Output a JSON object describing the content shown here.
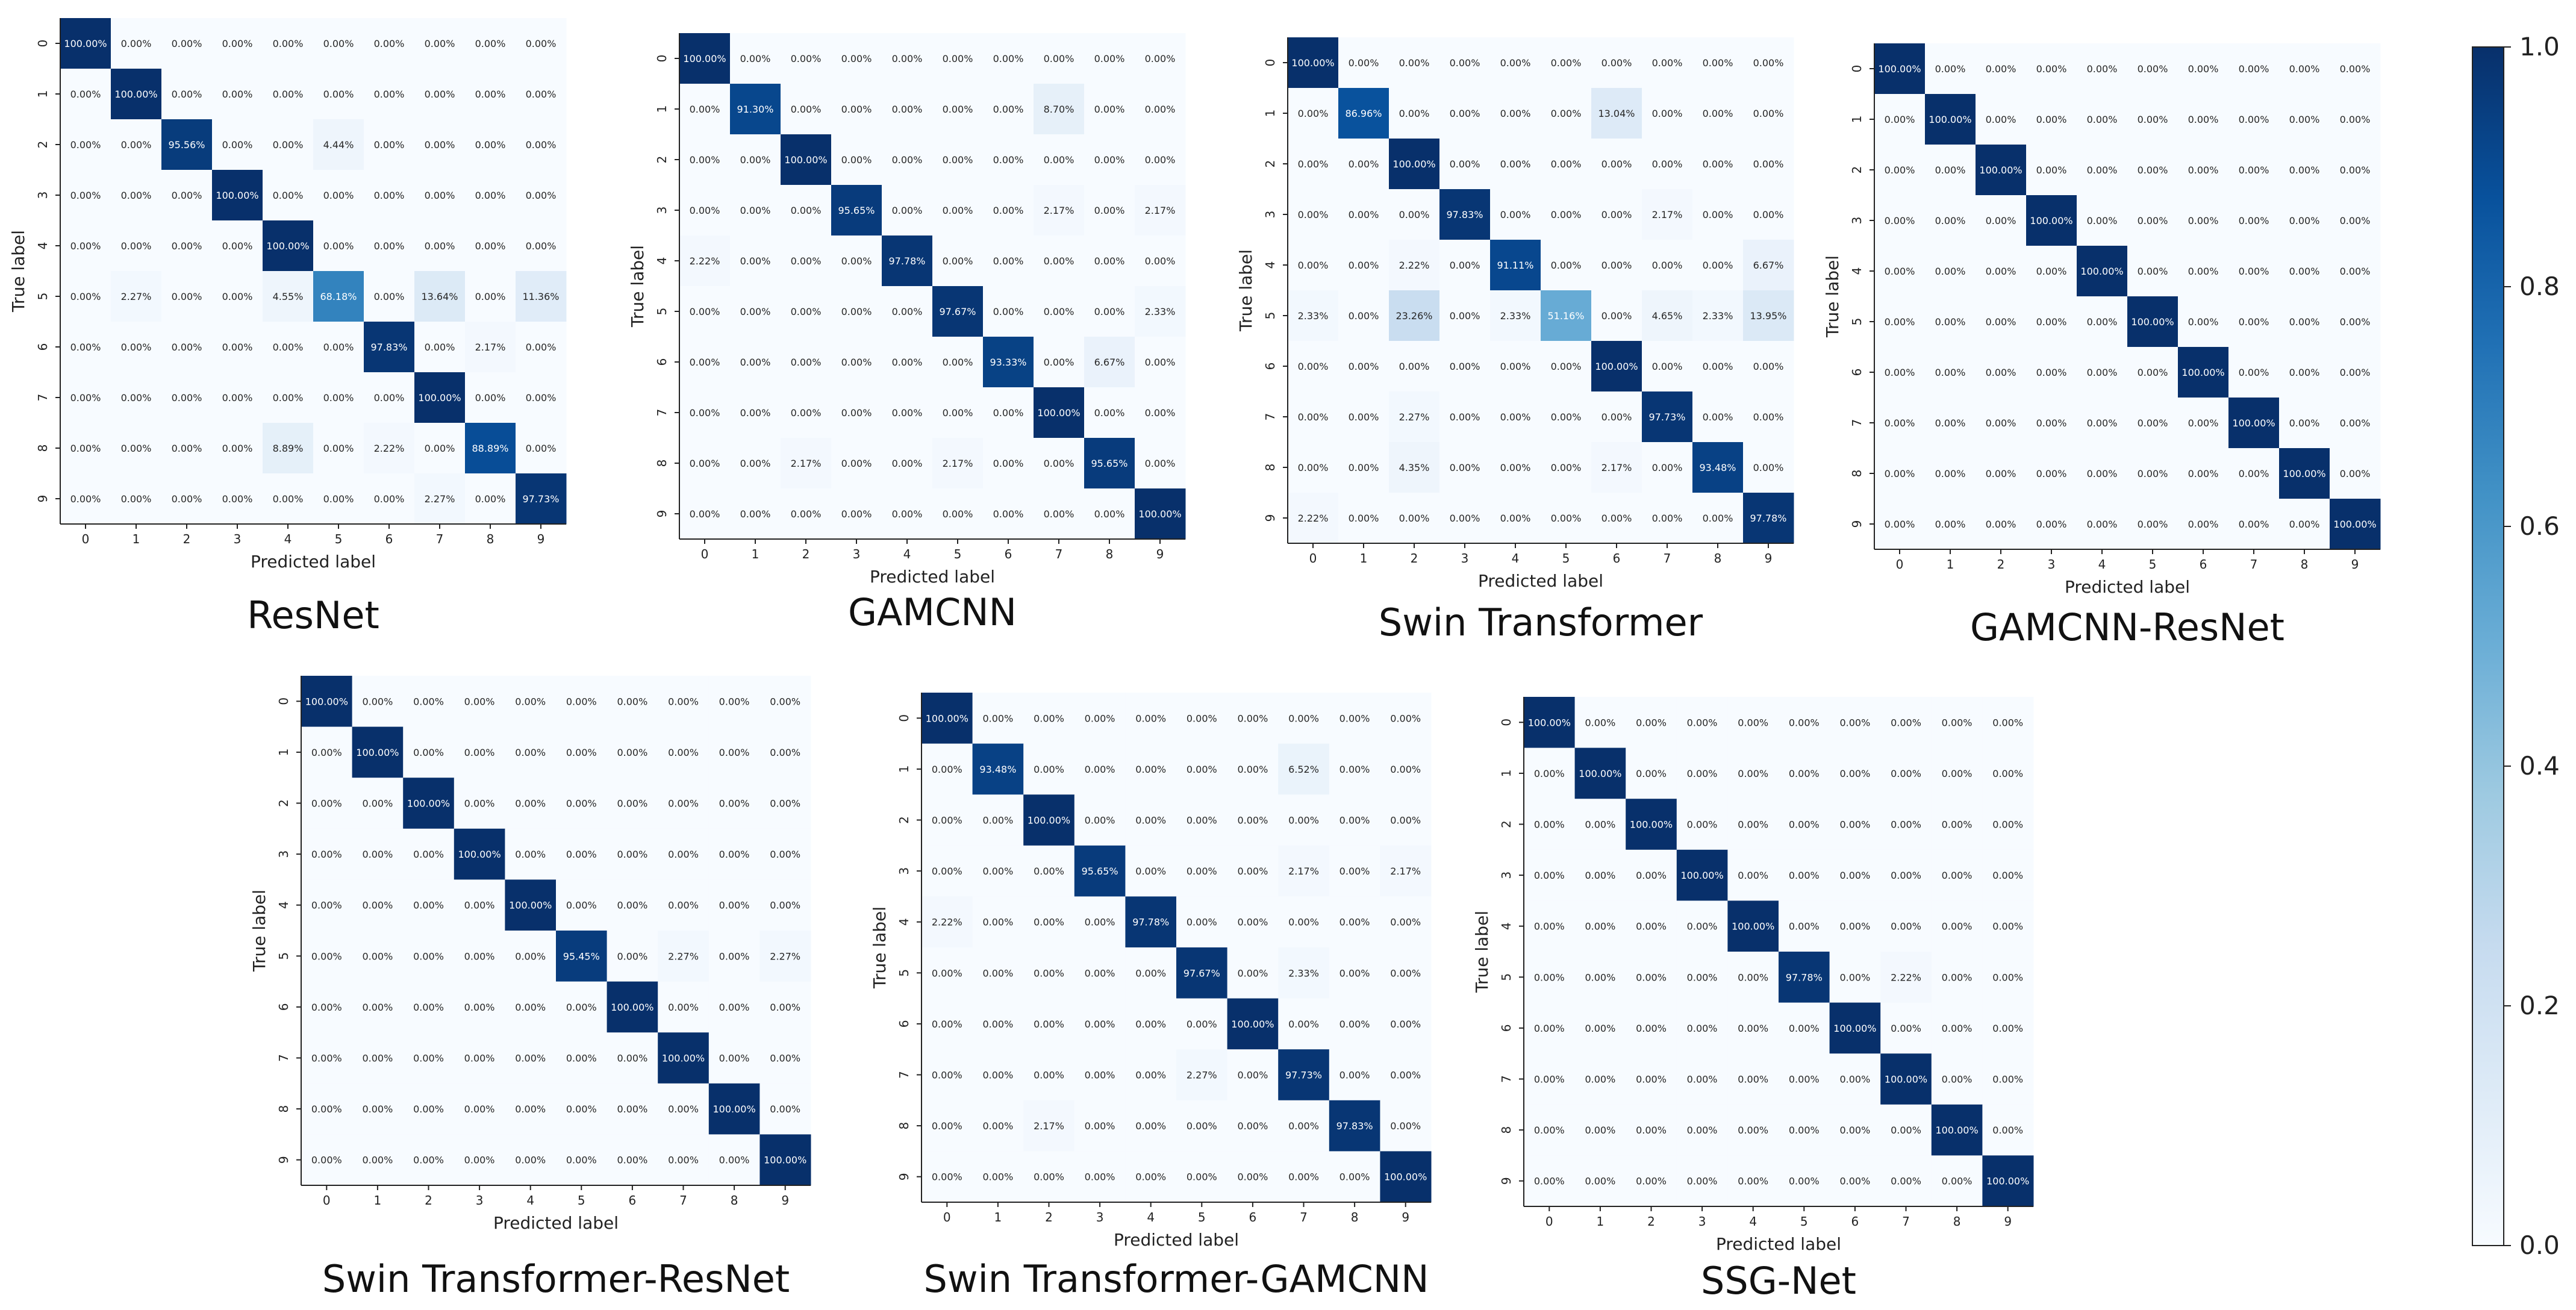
{
  "figure": {
    "colorbar": {
      "colormap": "Blues",
      "ticks": [
        "0.0",
        "0.2",
        "0.4",
        "0.6",
        "0.8",
        "1.0"
      ]
    },
    "colors": {
      "cmap_low": "#f7fbff",
      "cmap_high": "#08306b",
      "axis": "#222222"
    }
  },
  "chart_data": [
    {
      "type": "heatmap",
      "title": "ResNet",
      "xlabel": "Predicted label",
      "ylabel": "True label",
      "categories": [
        "0",
        "1",
        "2",
        "3",
        "4",
        "5",
        "6",
        "7",
        "8",
        "9"
      ],
      "values": [
        [
          100.0,
          0,
          0,
          0,
          0,
          0,
          0,
          0,
          0,
          0
        ],
        [
          0,
          100.0,
          0,
          0,
          0,
          0,
          0,
          0,
          0,
          0
        ],
        [
          0,
          0,
          95.56,
          0,
          0,
          4.44,
          0,
          0,
          0,
          0
        ],
        [
          0,
          0,
          0,
          100.0,
          0,
          0,
          0,
          0,
          0,
          0
        ],
        [
          0,
          0,
          0,
          0,
          100.0,
          0,
          0,
          0,
          0,
          0
        ],
        [
          0,
          2.27,
          0,
          0,
          4.55,
          68.18,
          0,
          13.64,
          0,
          11.36
        ],
        [
          0,
          0,
          0,
          0,
          0,
          0,
          97.83,
          0,
          2.17,
          0
        ],
        [
          0,
          0,
          0,
          0,
          0,
          0,
          0,
          100.0,
          0,
          0
        ],
        [
          0,
          0,
          0,
          0,
          8.89,
          0,
          2.22,
          0,
          88.89,
          0
        ],
        [
          0,
          0,
          0,
          0,
          0,
          0,
          0,
          2.27,
          0,
          97.73
        ]
      ]
    },
    {
      "type": "heatmap",
      "title": "GAMCNN",
      "xlabel": "Predicted label",
      "ylabel": "True label",
      "categories": [
        "0",
        "1",
        "2",
        "3",
        "4",
        "5",
        "6",
        "7",
        "8",
        "9"
      ],
      "values": [
        [
          100.0,
          0,
          0,
          0,
          0,
          0,
          0,
          0,
          0,
          0
        ],
        [
          0,
          91.3,
          0,
          0,
          0,
          0,
          0,
          8.7,
          0,
          0
        ],
        [
          0,
          0,
          100.0,
          0,
          0,
          0,
          0,
          0,
          0,
          0
        ],
        [
          0,
          0,
          0,
          95.65,
          0,
          0,
          0,
          2.17,
          0,
          2.17
        ],
        [
          2.22,
          0,
          0,
          0,
          97.78,
          0,
          0,
          0,
          0,
          0
        ],
        [
          0,
          0,
          0,
          0,
          0,
          97.67,
          0,
          0,
          0,
          2.33
        ],
        [
          0,
          0,
          0,
          0,
          0,
          0,
          93.33,
          0,
          6.67,
          0
        ],
        [
          0,
          0,
          0,
          0,
          0,
          0,
          0,
          100.0,
          0,
          0
        ],
        [
          0,
          0,
          2.17,
          0,
          0,
          2.17,
          0,
          0,
          95.65,
          0
        ],
        [
          0,
          0,
          0,
          0,
          0,
          0,
          0,
          0,
          0,
          100.0
        ]
      ]
    },
    {
      "type": "heatmap",
      "title": "Swin Transformer",
      "xlabel": "Predicted label",
      "ylabel": "True label",
      "categories": [
        "0",
        "1",
        "2",
        "3",
        "4",
        "5",
        "6",
        "7",
        "8",
        "9"
      ],
      "values": [
        [
          100.0,
          0,
          0,
          0,
          0,
          0,
          0,
          0,
          0,
          0
        ],
        [
          0,
          86.96,
          0,
          0,
          0,
          0,
          13.04,
          0,
          0,
          0
        ],
        [
          0,
          0,
          100.0,
          0,
          0,
          0,
          0,
          0,
          0,
          0
        ],
        [
          0,
          0,
          0,
          97.83,
          0,
          0,
          0,
          2.17,
          0,
          0
        ],
        [
          0,
          0,
          2.22,
          0,
          91.11,
          0,
          0,
          0,
          0,
          6.67
        ],
        [
          2.33,
          0,
          23.26,
          0,
          2.33,
          51.16,
          0,
          4.65,
          2.33,
          13.95
        ],
        [
          0,
          0,
          0,
          0,
          0,
          0,
          100.0,
          0,
          0,
          0
        ],
        [
          0,
          0,
          2.27,
          0,
          0,
          0,
          0,
          97.73,
          0,
          0
        ],
        [
          0,
          0,
          4.35,
          0,
          0,
          0,
          2.17,
          0,
          93.48,
          0
        ],
        [
          2.22,
          0,
          0,
          0,
          0,
          0,
          0,
          0,
          0,
          97.78
        ]
      ]
    },
    {
      "type": "heatmap",
      "title": "GAMCNN-ResNet",
      "xlabel": "Predicted label",
      "ylabel": "True label",
      "categories": [
        "0",
        "1",
        "2",
        "3",
        "4",
        "5",
        "6",
        "7",
        "8",
        "9"
      ],
      "values": [
        [
          100.0,
          0,
          0,
          0,
          0,
          0,
          0,
          0,
          0,
          0
        ],
        [
          0,
          100.0,
          0,
          0,
          0,
          0,
          0,
          0,
          0,
          0
        ],
        [
          0,
          0,
          100.0,
          0,
          0,
          0,
          0,
          0,
          0,
          0
        ],
        [
          0,
          0,
          0,
          100.0,
          0,
          0,
          0,
          0,
          0,
          0
        ],
        [
          0,
          0,
          0,
          0,
          100.0,
          0,
          0,
          0,
          0,
          0
        ],
        [
          0,
          0,
          0,
          0,
          0,
          100.0,
          0,
          0,
          0,
          0
        ],
        [
          0,
          0,
          0,
          0,
          0,
          0,
          100.0,
          0,
          0,
          0
        ],
        [
          0,
          0,
          0,
          0,
          0,
          0,
          0,
          100.0,
          0,
          0
        ],
        [
          0,
          0,
          0,
          0,
          0,
          0,
          0,
          0,
          100.0,
          0
        ],
        [
          0,
          0,
          0,
          0,
          0,
          0,
          0,
          0,
          0,
          100.0
        ]
      ]
    },
    {
      "type": "heatmap",
      "title": "Swin Transformer-ResNet",
      "xlabel": "Predicted label",
      "ylabel": "True label",
      "categories": [
        "0",
        "1",
        "2",
        "3",
        "4",
        "5",
        "6",
        "7",
        "8",
        "9"
      ],
      "values": [
        [
          100.0,
          0,
          0,
          0,
          0,
          0,
          0,
          0,
          0,
          0
        ],
        [
          0,
          100.0,
          0,
          0,
          0,
          0,
          0,
          0,
          0,
          0
        ],
        [
          0,
          0,
          100.0,
          0,
          0,
          0,
          0,
          0,
          0,
          0
        ],
        [
          0,
          0,
          0,
          100.0,
          0,
          0,
          0,
          0,
          0,
          0
        ],
        [
          0,
          0,
          0,
          0,
          100.0,
          0,
          0,
          0,
          0,
          0
        ],
        [
          0,
          0,
          0,
          0,
          0,
          95.45,
          0,
          2.27,
          0,
          2.27
        ],
        [
          0,
          0,
          0,
          0,
          0,
          0,
          100.0,
          0,
          0,
          0
        ],
        [
          0,
          0,
          0,
          0,
          0,
          0,
          0,
          100.0,
          0,
          0
        ],
        [
          0,
          0,
          0,
          0,
          0,
          0,
          0,
          0,
          100.0,
          0
        ],
        [
          0,
          0,
          0,
          0,
          0,
          0,
          0,
          0,
          0,
          100.0
        ]
      ]
    },
    {
      "type": "heatmap",
      "title": "Swin Transformer-GAMCNN",
      "xlabel": "Predicted label",
      "ylabel": "True label",
      "categories": [
        "0",
        "1",
        "2",
        "3",
        "4",
        "5",
        "6",
        "7",
        "8",
        "9"
      ],
      "values": [
        [
          100.0,
          0,
          0,
          0,
          0,
          0,
          0,
          0,
          0,
          0
        ],
        [
          0,
          93.48,
          0,
          0,
          0,
          0,
          0,
          6.52,
          0,
          0
        ],
        [
          0,
          0,
          100.0,
          0,
          0,
          0,
          0,
          0,
          0,
          0
        ],
        [
          0,
          0,
          0,
          95.65,
          0,
          0,
          0,
          2.17,
          0,
          2.17
        ],
        [
          2.22,
          0,
          0,
          0,
          97.78,
          0,
          0,
          0,
          0,
          0
        ],
        [
          0,
          0,
          0,
          0,
          0,
          97.67,
          0,
          2.33,
          0,
          0
        ],
        [
          0,
          0,
          0,
          0,
          0,
          0,
          100.0,
          0,
          0,
          0
        ],
        [
          0,
          0,
          0,
          0,
          0,
          2.27,
          0,
          97.73,
          0,
          0
        ],
        [
          0,
          0,
          2.17,
          0,
          0,
          0,
          0,
          0,
          97.83,
          0
        ],
        [
          0,
          0,
          0,
          0,
          0,
          0,
          0,
          0,
          0,
          100.0
        ]
      ]
    },
    {
      "type": "heatmap",
      "title": "SSG-Net",
      "xlabel": "Predicted label",
      "ylabel": "True label",
      "categories": [
        "0",
        "1",
        "2",
        "3",
        "4",
        "5",
        "6",
        "7",
        "8",
        "9"
      ],
      "values": [
        [
          100.0,
          0,
          0,
          0,
          0,
          0,
          0,
          0,
          0,
          0
        ],
        [
          0,
          100.0,
          0,
          0,
          0,
          0,
          0,
          0,
          0,
          0
        ],
        [
          0,
          0,
          100.0,
          0,
          0,
          0,
          0,
          0,
          0,
          0
        ],
        [
          0,
          0,
          0,
          100.0,
          0,
          0,
          0,
          0,
          0,
          0
        ],
        [
          0,
          0,
          0,
          0,
          100.0,
          0,
          0,
          0,
          0,
          0
        ],
        [
          0,
          0,
          0,
          0,
          0,
          97.78,
          0,
          2.22,
          0,
          0
        ],
        [
          0,
          0,
          0,
          0,
          0,
          0,
          100.0,
          0,
          0,
          0
        ],
        [
          0,
          0,
          0,
          0,
          0,
          0,
          0,
          100.0,
          0,
          0
        ],
        [
          0,
          0,
          0,
          0,
          0,
          0,
          0,
          0,
          100.0,
          0
        ],
        [
          0,
          0,
          0,
          0,
          0,
          0,
          0,
          0,
          0,
          100.0
        ]
      ]
    }
  ]
}
